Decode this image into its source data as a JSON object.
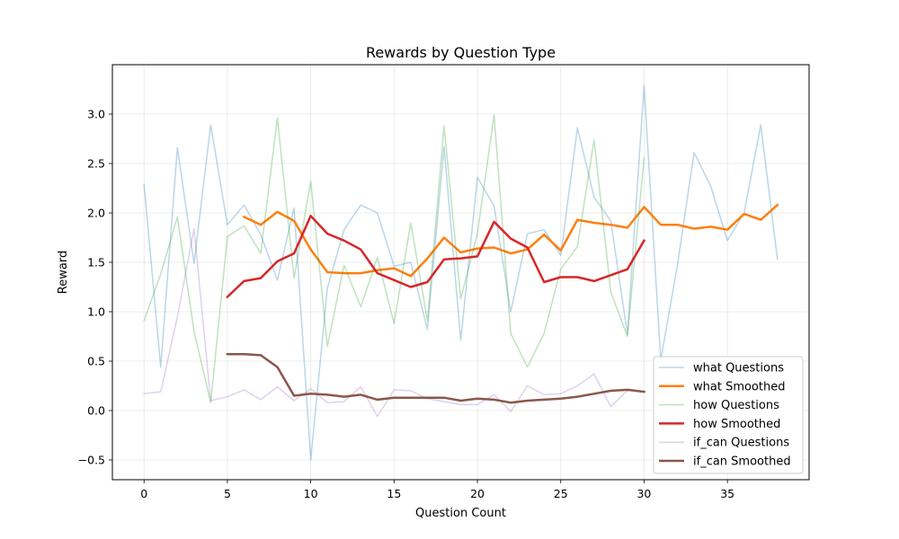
{
  "chart_data": {
    "type": "line",
    "title": "Rewards by Question Type",
    "xlabel": "Question Count",
    "ylabel": "Reward",
    "xlim": [
      -1.9,
      39.9
    ],
    "ylim": [
      -0.7,
      3.5
    ],
    "xticks": [
      0,
      5,
      10,
      15,
      20,
      25,
      30,
      35
    ],
    "yticks": [
      -0.5,
      0.0,
      0.5,
      1.0,
      1.5,
      2.0,
      2.5,
      3.0
    ],
    "ytick_labels": [
      "−0.5",
      "0.0",
      "0.5",
      "1.0",
      "1.5",
      "2.0",
      "2.5",
      "3.0"
    ],
    "grid": true,
    "legend_position": "lower-right",
    "series": [
      {
        "name": "what Questions",
        "color": "#1f77b4",
        "opacity": 0.3,
        "width": 1.5,
        "x_start": 0,
        "values": [
          2.29,
          0.44,
          2.66,
          1.49,
          2.89,
          1.88,
          2.08,
          1.78,
          1.32,
          2.05,
          -0.5,
          1.24,
          1.83,
          2.08,
          2.0,
          1.46,
          1.5,
          0.82,
          2.67,
          0.71,
          2.36,
          2.07,
          1.0,
          1.79,
          1.83,
          1.57,
          2.86,
          2.16,
          1.92,
          0.77,
          3.29,
          0.51,
          1.47,
          2.61,
          2.27,
          1.72,
          2.0,
          2.89,
          1.53
        ]
      },
      {
        "name": "what Smoothed",
        "color": "#ff7f0e",
        "opacity": 1,
        "width": 2.5,
        "x_start": 6,
        "values": [
          1.96,
          1.88,
          2.01,
          1.92,
          1.63,
          1.4,
          1.39,
          1.39,
          1.42,
          1.44,
          1.36,
          1.54,
          1.75,
          1.6,
          1.64,
          1.65,
          1.59,
          1.63,
          1.78,
          1.62,
          1.93,
          1.9,
          1.88,
          1.85,
          2.06,
          1.88,
          1.88,
          1.84,
          1.86,
          1.83,
          1.99,
          1.93,
          2.08
        ]
      },
      {
        "name": "how Questions",
        "color": "#2ca02c",
        "opacity": 0.3,
        "width": 1.5,
        "x_start": 0,
        "values": [
          0.91,
          1.38,
          1.96,
          0.8,
          0.08,
          1.76,
          1.87,
          1.59,
          2.96,
          1.34,
          2.32,
          0.65,
          1.47,
          1.05,
          1.55,
          0.88,
          1.9,
          0.91,
          2.88,
          1.13,
          1.79,
          2.99,
          0.78,
          0.44,
          0.78,
          1.43,
          1.66,
          2.74,
          1.2,
          0.75,
          2.56
        ]
      },
      {
        "name": "how Smoothed",
        "color": "#d62728",
        "opacity": 1,
        "width": 2.5,
        "x_start": 5,
        "values": [
          1.15,
          1.31,
          1.34,
          1.51,
          1.59,
          1.97,
          1.79,
          1.72,
          1.63,
          1.39,
          1.32,
          1.25,
          1.3,
          1.53,
          1.54,
          1.56,
          1.91,
          1.74,
          1.65,
          1.3,
          1.35,
          1.35,
          1.31,
          1.37,
          1.43,
          1.72
        ]
      },
      {
        "name": "if_can Questions",
        "color": "#9467bd",
        "opacity": 0.3,
        "width": 1.5,
        "x_start": 0,
        "values": [
          0.17,
          0.19,
          0.95,
          1.84,
          0.1,
          0.14,
          0.21,
          0.11,
          0.24,
          0.1,
          0.22,
          0.08,
          0.09,
          0.24,
          -0.06,
          0.21,
          0.2,
          0.12,
          0.09,
          0.06,
          0.06,
          0.16,
          -0.01,
          0.25,
          0.16,
          0.17,
          0.25,
          0.37,
          0.04,
          0.2
        ]
      },
      {
        "name": "if_can Smoothed",
        "color": "#8c564b",
        "opacity": 1,
        "width": 2.5,
        "x_start": 5,
        "values": [
          0.57,
          0.57,
          0.56,
          0.44,
          0.15,
          0.17,
          0.16,
          0.14,
          0.16,
          0.11,
          0.13,
          0.13,
          0.13,
          0.13,
          0.1,
          0.12,
          0.11,
          0.08,
          0.1,
          0.11,
          0.12,
          0.14,
          0.17,
          0.2,
          0.21,
          0.19
        ]
      }
    ]
  }
}
